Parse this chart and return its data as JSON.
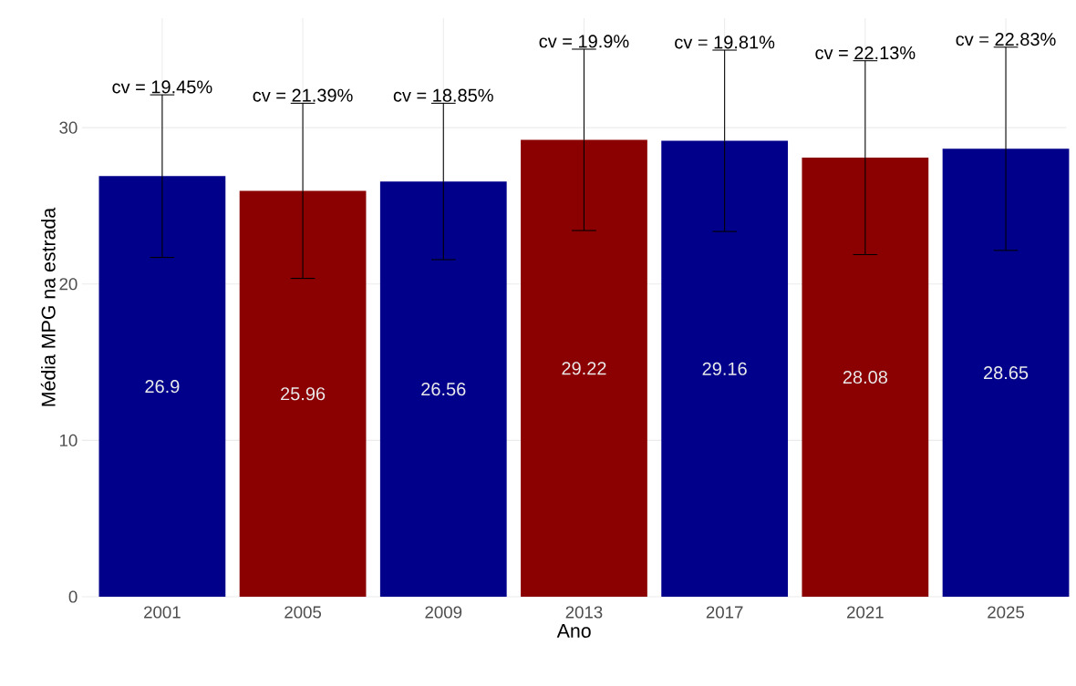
{
  "chart_data": {
    "type": "bar",
    "xlabel": "Ano",
    "ylabel": "Média MPG na estrada",
    "categories": [
      "2001",
      "2005",
      "2009",
      "2013",
      "2017",
      "2021",
      "2025"
    ],
    "values": [
      26.9,
      25.96,
      26.56,
      29.22,
      29.16,
      28.08,
      28.65
    ],
    "value_labels": [
      "26.9",
      "25.96",
      "26.56",
      "29.22",
      "29.16",
      "28.08",
      "28.65"
    ],
    "errors": [
      5.2,
      5.6,
      5.0,
      5.8,
      5.8,
      6.2,
      6.5
    ],
    "colors": [
      "#00008b",
      "#8b0000",
      "#00008b",
      "#8b0000",
      "#00008b",
      "#8b0000",
      "#00008b"
    ],
    "ylim": [
      0,
      37
    ],
    "yticks": [
      0,
      10,
      20,
      30
    ],
    "grid": true,
    "annotations": [
      {
        "text": "cv = 19.45%",
        "x": "2001",
        "y": 32.1
      },
      {
        "text": "cv = 21.39%",
        "x": "2005",
        "y": 31.56
      },
      {
        "text": "cv = 18.85%",
        "x": "2009",
        "y": 31.56
      },
      {
        "text": "cv = 19.9%",
        "x": "2013",
        "y": 35.02
      },
      {
        "text": "cv = 19.81%",
        "x": "2017",
        "y": 34.96
      },
      {
        "text": "cv = 22.13%",
        "x": "2021",
        "y": 34.28
      },
      {
        "text": "cv = 22.83%",
        "x": "2025",
        "y": 35.15
      }
    ]
  }
}
